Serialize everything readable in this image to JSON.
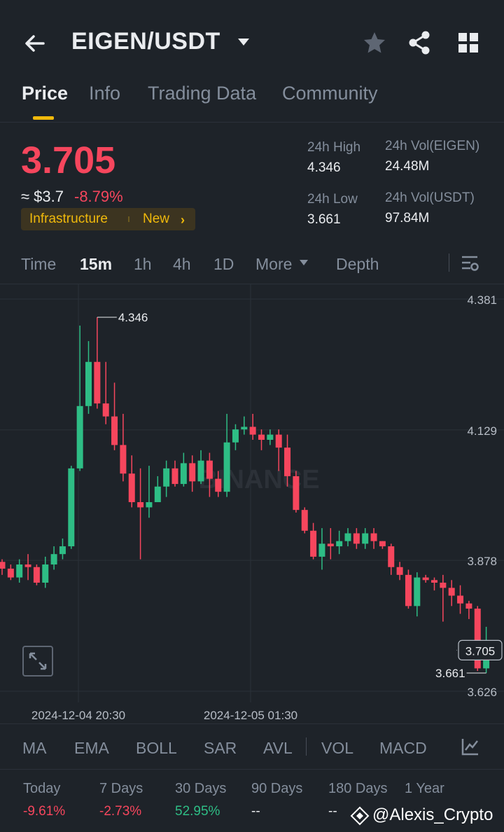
{
  "header": {
    "pair": "EIGEN/USDT",
    "icons": [
      "back-arrow-icon",
      "chevron-down-icon",
      "star-icon",
      "share-icon",
      "grid-icon"
    ]
  },
  "tabs": [
    {
      "label": "Price",
      "active": true
    },
    {
      "label": "Info",
      "active": false
    },
    {
      "label": "Trading Data",
      "active": false
    },
    {
      "label": "Community",
      "active": false
    }
  ],
  "ticker": {
    "last_price": "3.705",
    "fiat_price": "≈ $3.7",
    "change_pct": "-8.79%",
    "tag_sector": "Infrastructure",
    "tag_new": "New",
    "tag_chevron": "›",
    "stats": {
      "high_label": "24h High",
      "high_value": "4.346",
      "low_label": "24h Low",
      "low_value": "3.661",
      "vol_base_label": "24h Vol(EIGEN)",
      "vol_base_value": "24.48M",
      "vol_quote_label": "24h Vol(USDT)",
      "vol_quote_value": "97.84M"
    }
  },
  "intervals": [
    {
      "label": "Time",
      "active": false
    },
    {
      "label": "15m",
      "active": true
    },
    {
      "label": "1h",
      "active": false
    },
    {
      "label": "4h",
      "active": false
    },
    {
      "label": "1D",
      "active": false
    },
    {
      "label": "More",
      "active": false
    },
    {
      "label": "Depth",
      "active": false
    }
  ],
  "chart_data": {
    "type": "candlestick",
    "watermark": "BINANCE",
    "y_ticks": [
      "4.381",
      "4.129",
      "3.878",
      "3.626"
    ],
    "ylim": [
      3.6,
      4.4
    ],
    "x_ticks": [
      "2024-12-04 20:30",
      "2024-12-05 01:30"
    ],
    "high_marker": "4.346",
    "low_marker": "3.661",
    "last_price_label": "3.705",
    "colors": {
      "up": "#2ebd85",
      "down": "#f6465d"
    },
    "candles": [
      [
        3.875,
        3.862,
        3.88,
        3.85
      ],
      [
        3.862,
        3.845,
        3.87,
        3.84
      ],
      [
        3.845,
        3.87,
        3.88,
        3.835
      ],
      [
        3.87,
        3.865,
        3.89,
        3.84
      ],
      [
        3.865,
        3.835,
        3.87,
        3.83
      ],
      [
        3.835,
        3.87,
        3.885,
        3.825
      ],
      [
        3.87,
        3.89,
        3.905,
        3.86
      ],
      [
        3.89,
        3.905,
        3.92,
        3.88
      ],
      [
        3.905,
        4.055,
        4.06,
        3.9
      ],
      [
        4.055,
        4.175,
        4.33,
        4.05
      ],
      [
        4.175,
        4.26,
        4.3,
        4.16
      ],
      [
        4.26,
        4.18,
        4.346,
        4.17
      ],
      [
        4.18,
        4.155,
        4.26,
        4.14
      ],
      [
        4.155,
        4.1,
        4.22,
        4.09
      ],
      [
        4.1,
        4.045,
        4.16,
        4.03
      ],
      [
        4.045,
        3.99,
        4.08,
        3.98
      ],
      [
        3.99,
        3.98,
        4.055,
        3.88
      ],
      [
        3.98,
        3.99,
        4.06,
        3.96
      ],
      [
        3.99,
        4.02,
        4.04,
        3.99
      ],
      [
        4.02,
        4.055,
        4.07,
        4.0
      ],
      [
        4.055,
        4.025,
        4.07,
        4.02
      ],
      [
        4.025,
        4.065,
        4.085,
        4.02
      ],
      [
        4.065,
        4.03,
        4.08,
        4.01
      ],
      [
        4.03,
        4.07,
        4.09,
        4.025
      ],
      [
        4.07,
        4.035,
        4.085,
        4.0
      ],
      [
        4.035,
        4.01,
        4.05,
        4.0
      ],
      [
        4.01,
        4.105,
        4.16,
        4.0
      ],
      [
        4.105,
        4.13,
        4.14,
        4.09
      ],
      [
        4.13,
        4.135,
        4.155,
        4.12
      ],
      [
        4.135,
        4.12,
        4.16,
        4.11
      ],
      [
        4.12,
        4.11,
        4.13,
        4.09
      ],
      [
        4.11,
        4.12,
        4.13,
        4.1
      ],
      [
        4.12,
        4.095,
        4.13,
        4.05
      ],
      [
        4.095,
        4.04,
        4.12,
        4.02
      ],
      [
        4.04,
        3.975,
        4.05,
        3.97
      ],
      [
        3.975,
        3.935,
        3.98,
        3.93
      ],
      [
        3.935,
        3.885,
        3.95,
        3.88
      ],
      [
        3.885,
        3.91,
        3.94,
        3.86
      ],
      [
        3.91,
        3.905,
        3.94,
        3.88
      ],
      [
        3.905,
        3.915,
        3.935,
        3.89
      ],
      [
        3.915,
        3.93,
        3.94,
        3.905
      ],
      [
        3.93,
        3.91,
        3.94,
        3.9
      ],
      [
        3.91,
        3.93,
        3.94,
        3.9
      ],
      [
        3.93,
        3.915,
        3.94,
        3.9
      ],
      [
        3.915,
        3.905,
        3.915,
        3.9
      ],
      [
        3.905,
        3.865,
        3.91,
        3.85
      ],
      [
        3.865,
        3.85,
        3.875,
        3.84
      ],
      [
        3.85,
        3.79,
        3.86,
        3.785
      ],
      [
        3.79,
        3.845,
        3.855,
        3.77
      ],
      [
        3.845,
        3.84,
        3.85,
        3.835
      ],
      [
        3.84,
        3.835,
        3.845,
        3.82
      ],
      [
        3.835,
        3.825,
        3.85,
        3.76
      ],
      [
        3.825,
        3.81,
        3.84,
        3.79
      ],
      [
        3.81,
        3.795,
        3.83,
        3.775
      ],
      [
        3.795,
        3.785,
        3.8,
        3.765
      ],
      [
        3.785,
        3.67,
        3.79,
        3.665
      ],
      [
        3.67,
        3.705,
        3.75,
        3.661
      ]
    ]
  },
  "indicators": [
    "MA",
    "EMA",
    "BOLL",
    "SAR",
    "AVL",
    "VOL",
    "MACD"
  ],
  "performance": [
    {
      "label": "Today",
      "value": "-9.61%",
      "tone": "red"
    },
    {
      "label": "7 Days",
      "value": "-2.73%",
      "tone": "red"
    },
    {
      "label": "30 Days",
      "value": "52.95%",
      "tone": "green"
    },
    {
      "label": "90 Days",
      "value": "--",
      "tone": "grey"
    },
    {
      "label": "180 Days",
      "value": "--",
      "tone": "grey"
    },
    {
      "label": "1 Year",
      "value": "",
      "tone": "grey"
    }
  ],
  "watermark_text": "@Alexis_Crypto"
}
